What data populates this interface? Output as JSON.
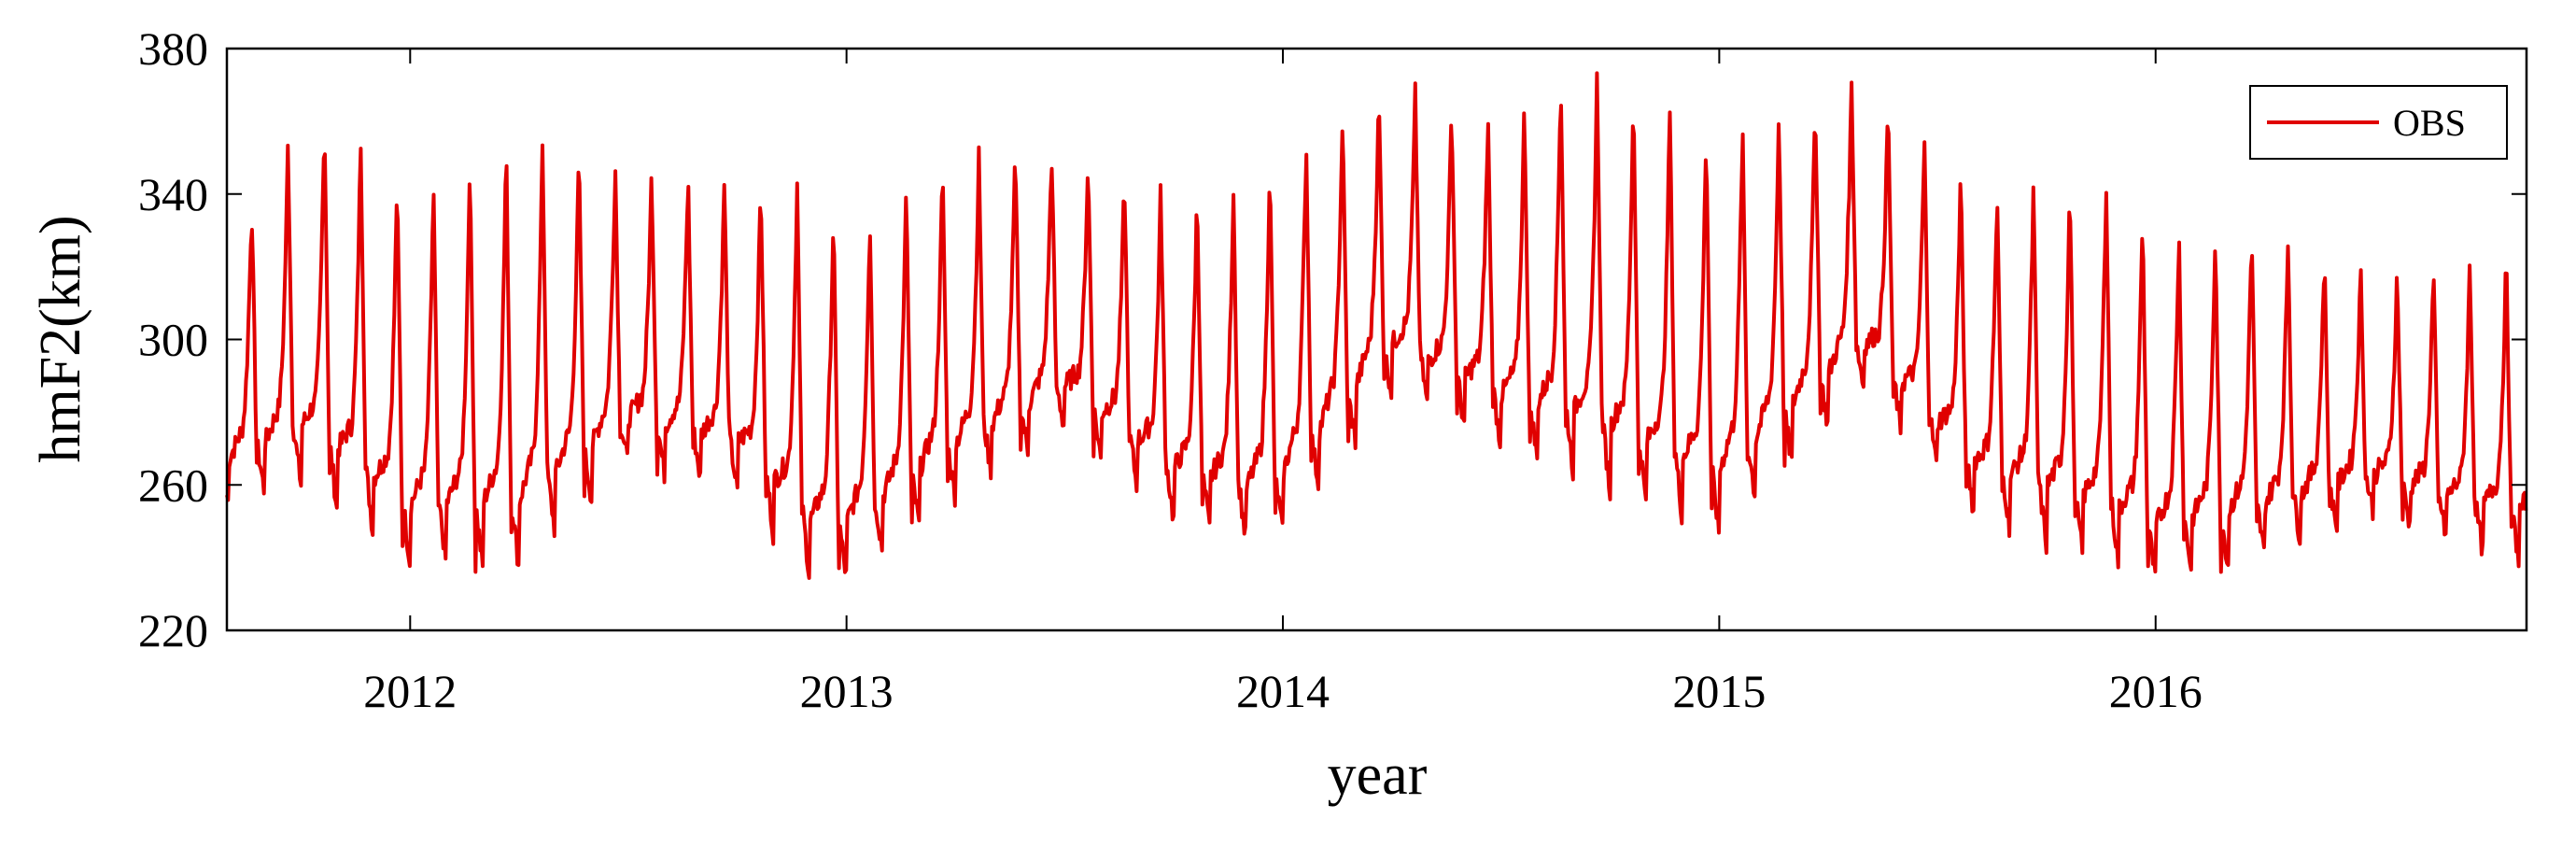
{
  "chart_data": {
    "type": "line",
    "title": "",
    "xlabel": "year",
    "ylabel": "hmF2(km)",
    "xlim": [
      2011.58,
      2016.85
    ],
    "ylim": [
      220,
      380
    ],
    "yticks": [
      220,
      260,
      300,
      340,
      380
    ],
    "ytick_labels": [
      "220",
      "260",
      "300",
      "340",
      "380"
    ],
    "xticks": [
      2012,
      2013,
      2014,
      2015,
      2016
    ],
    "xtick_labels": [
      "2012",
      "2013",
      "2014",
      "2015",
      "2016"
    ],
    "grid": false,
    "legend_position": "top-right",
    "series": [
      {
        "name": "OBS",
        "color": "#e00000",
        "envelope": {
          "x": [
            2011.58,
            2011.75,
            2011.83,
            2012.0,
            2012.25,
            2012.5,
            2012.75,
            2012.92,
            2013.0,
            2013.25,
            2013.5,
            2013.75,
            2013.92,
            2014.0,
            2014.25,
            2014.5,
            2014.67,
            2014.9,
            2015.0,
            2015.33,
            2015.6,
            2015.9,
            2016.0,
            2016.25,
            2016.5,
            2016.7,
            2016.85
          ],
          "peak": [
            327,
            360,
            364,
            340,
            357,
            348,
            344,
            344,
            330,
            350,
            352,
            340,
            344,
            352,
            370,
            360,
            376,
            364,
            356,
            372,
            340,
            345,
            330,
            330,
            318,
            320,
            325
          ],
          "trough": [
            255,
            260,
            252,
            238,
            236,
            265,
            258,
            232,
            234,
            256,
            275,
            250,
            243,
            246,
            285,
            270,
            262,
            250,
            246,
            285,
            250,
            237,
            233,
            240,
            252,
            243,
            238
          ]
        }
      }
    ]
  }
}
